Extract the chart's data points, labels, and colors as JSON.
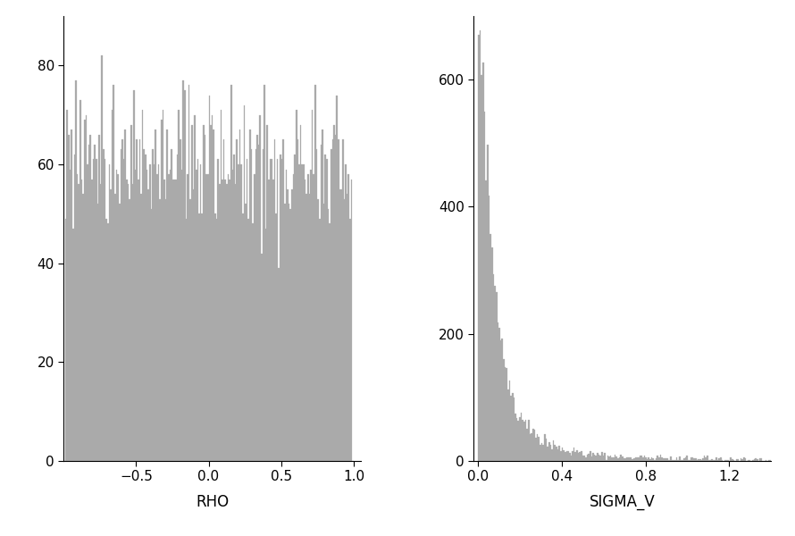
{
  "rho_n": 12000,
  "rho_bins": 200,
  "rho_xlim": [
    -1.0,
    1.05
  ],
  "rho_ylim": [
    0,
    90
  ],
  "rho_xticks": [
    -0.5,
    0.0,
    0.5,
    1.0
  ],
  "rho_yticks": [
    0,
    20,
    40,
    60,
    80
  ],
  "rho_xlabel": "RHO",
  "sigma_n": 10000,
  "sigma_bins": 200,
  "sigma_xlim": [
    -0.02,
    1.4
  ],
  "sigma_ylim": [
    0,
    700
  ],
  "sigma_xticks": [
    0.0,
    0.4,
    0.8,
    1.2
  ],
  "sigma_yticks": [
    0,
    200,
    400,
    600
  ],
  "sigma_xlabel": "SIGMA_V",
  "bar_color": "#aaaaaa",
  "bar_edgecolor": "#aaaaaa",
  "bg_color": "#ffffff",
  "xlabel_fontsize": 12,
  "tick_fontsize": 11,
  "figure_width": 8.9,
  "figure_height": 6.0
}
